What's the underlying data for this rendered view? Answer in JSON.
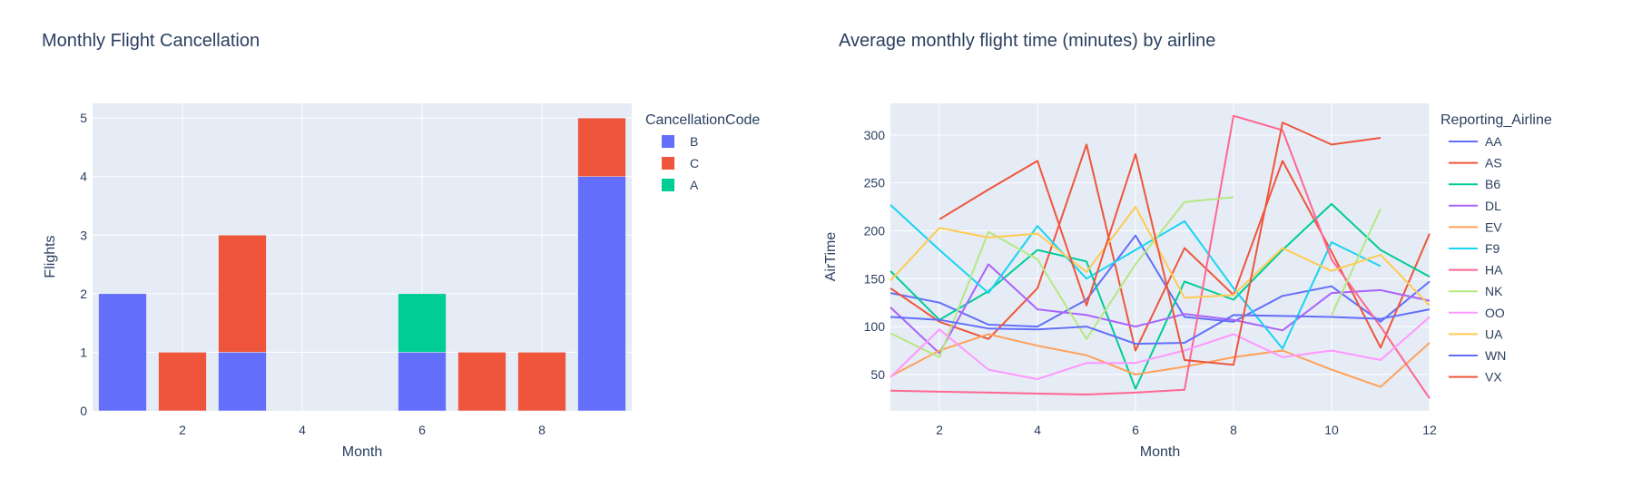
{
  "chart_data": [
    {
      "type": "bar",
      "title": "Monthly Flight Cancellation",
      "xlabel": "Month",
      "ylabel": "Flights",
      "xlim": [
        0.5,
        9.5
      ],
      "ylim": [
        0,
        5.25
      ],
      "xticks": [
        2,
        4,
        6,
        8
      ],
      "yticks": [
        0,
        1,
        2,
        3,
        4,
        5
      ],
      "barmode": "stack",
      "grid": true,
      "legend_title": "CancellationCode",
      "legend_position": "right",
      "series": [
        {
          "name": "B",
          "color": "#636efa",
          "x": [
            1,
            3,
            6,
            9
          ],
          "values": [
            2,
            1,
            1,
            4
          ]
        },
        {
          "name": "C",
          "color": "#EF553B",
          "x": [
            2,
            3,
            7,
            8,
            9
          ],
          "values": [
            1,
            2,
            1,
            1,
            1
          ]
        },
        {
          "name": "A",
          "color": "#00cc96",
          "x": [
            6
          ],
          "values": [
            1
          ]
        }
      ]
    },
    {
      "type": "line",
      "title": "Average monthly flight time (minutes) by airline",
      "xlabel": "Month",
      "ylabel": "AirTime",
      "xlim": [
        1,
        12
      ],
      "ylim": [
        12,
        333
      ],
      "xticks": [
        2,
        4,
        6,
        8,
        10,
        12
      ],
      "yticks": [
        50,
        100,
        150,
        200,
        250,
        300
      ],
      "grid": true,
      "legend_title": "Reporting_Airline",
      "legend_position": "right",
      "series": [
        {
          "name": "AA",
          "color": "#636efa",
          "x": [
            1,
            2,
            3,
            4,
            5,
            6,
            7,
            8,
            9,
            10,
            11,
            12
          ],
          "values": [
            135,
            125,
            102,
            100,
            128,
            195,
            110,
            105,
            132,
            142,
            105,
            147
          ]
        },
        {
          "name": "AS",
          "color": "#EF553B",
          "x": [
            1,
            2,
            3,
            4,
            5,
            6,
            7,
            8,
            9,
            10,
            11,
            12
          ],
          "values": [
            140,
            105,
            87,
            140,
            290,
            75,
            182,
            133,
            273,
            178,
            78,
            197
          ]
        },
        {
          "name": "B6",
          "color": "#00cc96",
          "x": [
            1,
            2,
            3,
            4,
            5,
            6,
            7,
            8,
            9,
            10,
            11,
            12
          ],
          "values": [
            158,
            107,
            137,
            180,
            168,
            35,
            147,
            128,
            180,
            228,
            180,
            152
          ]
        },
        {
          "name": "DL",
          "color": "#ab63fa",
          "x": [
            1,
            2,
            3,
            4,
            5,
            6,
            7,
            8,
            9,
            10,
            11,
            12
          ],
          "values": [
            120,
            72,
            165,
            118,
            112,
            100,
            113,
            107,
            96,
            135,
            138,
            127
          ]
        },
        {
          "name": "EV",
          "color": "#FFA15A",
          "x": [
            1,
            2,
            3,
            4,
            5,
            6,
            7,
            8,
            9,
            10,
            11,
            12
          ],
          "values": [
            48,
            75,
            92,
            80,
            70,
            50,
            58,
            68,
            75,
            55,
            37,
            83
          ]
        },
        {
          "name": "F9",
          "color": "#19d3f3",
          "x": [
            1,
            2,
            3,
            4,
            5,
            6,
            7,
            8,
            9,
            10,
            11
          ],
          "values": [
            227,
            180,
            135,
            205,
            150,
            180,
            210,
            140,
            77,
            188,
            163
          ]
        },
        {
          "name": "HA",
          "color": "#FF6692",
          "x": [
            1,
            2,
            3,
            4,
            5,
            6,
            7,
            8,
            9,
            10,
            11,
            12
          ],
          "values": [
            33,
            32,
            31,
            30,
            29,
            31,
            34,
            320,
            305,
            170,
            100,
            25
          ]
        },
        {
          "name": "NK",
          "color": "#B6E880",
          "x": [
            1,
            2,
            3,
            4,
            5,
            6,
            7,
            8,
            null,
            10,
            11
          ],
          "values": [
            93,
            68,
            199,
            170,
            87,
            165,
            230,
            235,
            null,
            112,
            223
          ]
        },
        {
          "name": "OO",
          "color": "#FF97FF",
          "x": [
            1,
            2,
            3,
            4,
            5,
            6,
            7,
            8,
            9,
            10,
            11,
            12
          ],
          "values": [
            47,
            97,
            55,
            45,
            62,
            62,
            75,
            92,
            68,
            75,
            65,
            110
          ]
        },
        {
          "name": "UA",
          "color": "#FECB52",
          "x": [
            1,
            2,
            3,
            4,
            5,
            6,
            7,
            8,
            9,
            10,
            11,
            12
          ],
          "values": [
            148,
            203,
            193,
            197,
            157,
            225,
            130,
            133,
            182,
            158,
            175,
            122
          ]
        },
        {
          "name": "WN",
          "color": "#636efa",
          "x": [
            1,
            2,
            3,
            4,
            5,
            6,
            7,
            8,
            9,
            10,
            11,
            12
          ],
          "values": [
            110,
            107,
            98,
            97,
            100,
            82,
            83,
            112,
            111,
            110,
            108,
            118
          ]
        },
        {
          "name": "VX",
          "color": "#EF553B",
          "x": [
            2,
            3,
            4,
            5,
            6,
            7,
            8,
            9,
            10,
            11
          ],
          "values": [
            212,
            243,
            273,
            122,
            280,
            65,
            60,
            313,
            290,
            297
          ]
        }
      ]
    }
  ]
}
